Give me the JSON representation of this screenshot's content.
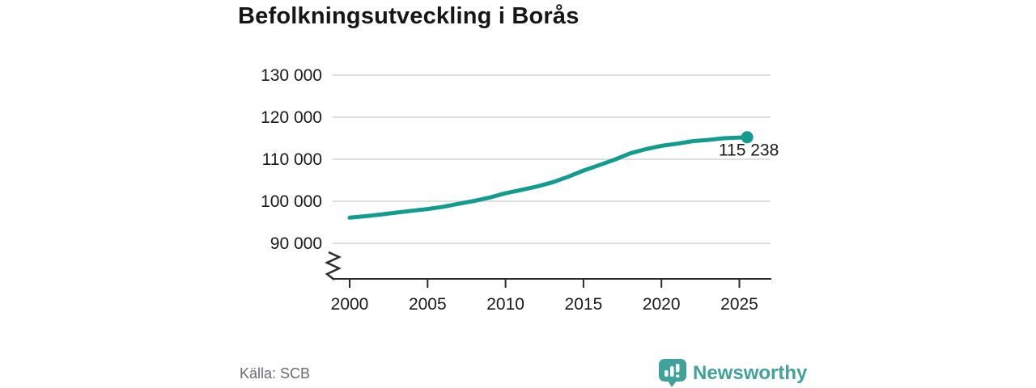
{
  "title": "Befolkningsutveckling i Borås",
  "source": {
    "label": "Källa: SCB"
  },
  "brand": {
    "name": "Newsworthy",
    "icon": "bar-chart-speech-bubble-icon"
  },
  "colors": {
    "line": "#129c8e",
    "marker": "#129c8e",
    "brand": "#3fa29b",
    "grid": "#dedede",
    "axis": "#2b2b2b",
    "text": "#1a1a1a",
    "muted": "#6b6b70",
    "background": "#ffffff"
  },
  "chart_data": {
    "type": "line",
    "title": "Befolkningsutveckling i Borås",
    "xlabel": "",
    "ylabel": "",
    "grid": "horizontal",
    "legend": "none",
    "axis_break": true,
    "xlim": [
      1999,
      2027
    ],
    "ylim": [
      81500,
      133000
    ],
    "x": [
      2000,
      2001,
      2002,
      2003,
      2004,
      2005,
      2006,
      2007,
      2008,
      2009,
      2010,
      2011,
      2012,
      2013,
      2014,
      2015,
      2016,
      2017,
      2018,
      2019,
      2020,
      2021,
      2022,
      2023,
      2024,
      2025.5
    ],
    "values": [
      96100,
      96450,
      96850,
      97300,
      97750,
      98150,
      98700,
      99400,
      100100,
      100900,
      101900,
      102700,
      103500,
      104500,
      105800,
      107300,
      108600,
      109900,
      111400,
      112400,
      113200,
      113700,
      114300,
      114600,
      115000,
      115238
    ],
    "end_value": 115238,
    "end_label": "115 238",
    "y_ticks": [
      {
        "value": 90000,
        "label": "90 000"
      },
      {
        "value": 100000,
        "label": "100 000"
      },
      {
        "value": 110000,
        "label": "110 000"
      },
      {
        "value": 120000,
        "label": "120 000"
      },
      {
        "value": 130000,
        "label": "130 000"
      }
    ],
    "x_ticks": [
      {
        "value": 2000,
        "label": "2000"
      },
      {
        "value": 2005,
        "label": "2005"
      },
      {
        "value": 2010,
        "label": "2010"
      },
      {
        "value": 2015,
        "label": "2015"
      },
      {
        "value": 2020,
        "label": "2020"
      },
      {
        "value": 2025,
        "label": "2025"
      }
    ]
  }
}
